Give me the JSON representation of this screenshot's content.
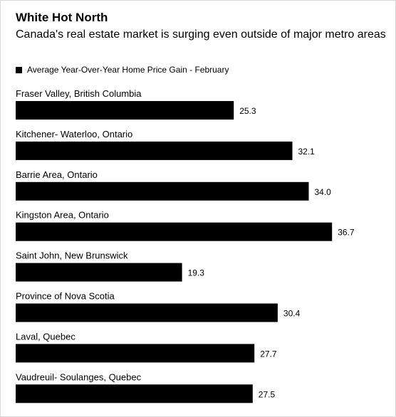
{
  "chart_data": {
    "type": "bar",
    "orientation": "horizontal",
    "title": "White Hot North",
    "subtitle": "Canada's real estate market is surging even outside of major metro areas",
    "legend": {
      "label": "Average Year-Over-Year Home Price Gain - February",
      "placement": "top-left"
    },
    "categories": [
      "Fraser Valley, British Columbia",
      "Kitchener- Waterloo, Ontario",
      "Barrie Area, Ontario",
      "Kingston Area, Ontario",
      "Saint John, New Brunswick",
      "Province of Nova Scotia",
      "Laval, Quebec",
      "Vaudreuil- Soulanges, Quebec"
    ],
    "values": [
      25.3,
      32.1,
      34.0,
      36.7,
      19.3,
      30.4,
      27.7,
      27.5
    ],
    "value_labels": [
      "25.3",
      "32.1",
      "34.0",
      "36.7",
      "19.3",
      "30.4",
      "27.7",
      "27.5"
    ],
    "xlim": [
      0,
      39
    ],
    "grid": false,
    "bar_color": "#000000"
  }
}
